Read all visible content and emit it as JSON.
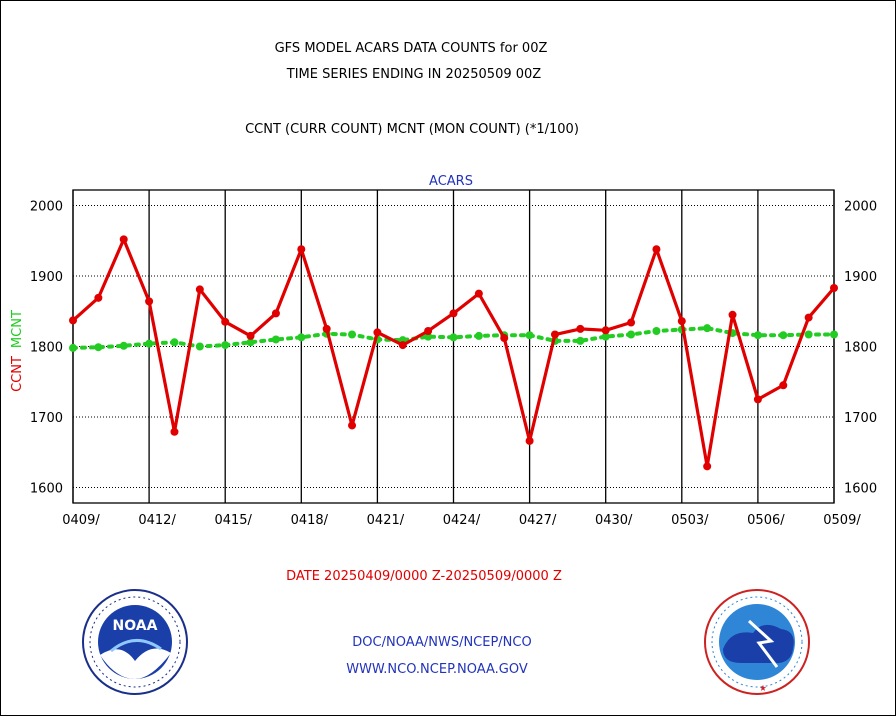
{
  "title_line1": "GFS MODEL ACARS DATA COUNTS for 00Z",
  "title_line2": "TIME SERIES ENDING IN 20250509 00Z",
  "subtitle": "CCNT (CURR COUNT) MCNT (MON COUNT) (*1/100)",
  "date_range": "DATE 20250409/0000 Z-20250509/0000 Z",
  "footer_line1": "DOC/NOAA/NWS/NCEP/NCO",
  "footer_line2": "WWW.NCO.NCEP.NOAA.GOV",
  "colors": {
    "ccnt": "#e00000",
    "mcnt": "#22cc22",
    "blue": "#2233bb"
  },
  "chart_data": {
    "type": "line",
    "title": "ACARS",
    "ylabel_ccnt": "CCNT",
    "ylabel_mcnt": "MCNT",
    "ylim": [
      1578,
      2022
    ],
    "y_ticks": [
      1600,
      1700,
      1800,
      1900,
      2000
    ],
    "x_ticks": [
      "0409/",
      "0412/",
      "0415/",
      "0418/",
      "0421/",
      "0424/",
      "0427/",
      "0430/",
      "0503/",
      "0506/",
      "0509/"
    ],
    "grid": true,
    "series": [
      {
        "name": "CCNT",
        "color": "#e00000",
        "values": [
          1837,
          1869,
          1952,
          1864,
          1679,
          1881,
          1835,
          1815,
          1847,
          1938,
          1825,
          1688,
          1820,
          1802,
          1822,
          1847,
          1875,
          1812,
          1666,
          1817,
          1825,
          1823,
          1834,
          1938,
          1836,
          1630,
          1845,
          1725,
          1745,
          1841,
          1883
        ]
      },
      {
        "name": "MCNT",
        "color": "#22cc22",
        "values": [
          1798,
          1799,
          1801,
          1804,
          1806,
          1800,
          1802,
          1806,
          1810,
          1813,
          1818,
          1817,
          1810,
          1809,
          1814,
          1813,
          1815,
          1816,
          1816,
          1808,
          1808,
          1814,
          1817,
          1822,
          1824,
          1826,
          1819,
          1816,
          1816,
          1817,
          1817
        ]
      }
    ]
  }
}
